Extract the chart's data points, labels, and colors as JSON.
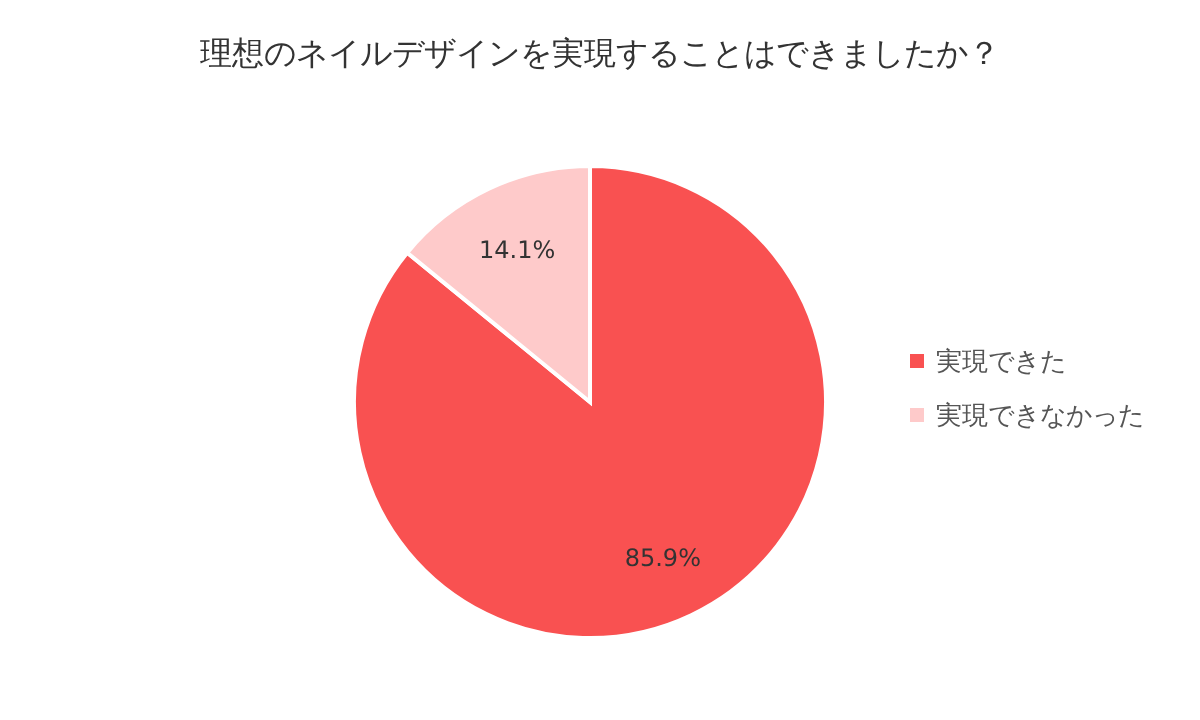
{
  "chart_data": {
    "type": "pie",
    "title": "理想のネイルデザインを実現することはできましたか？",
    "categories": [
      "実現できた",
      "実現できなかった"
    ],
    "values": [
      85.9,
      14.1
    ],
    "value_labels": [
      "85.9%",
      "14.1%"
    ],
    "colors": [
      "#f95151",
      "#fecaca"
    ],
    "legend": "right"
  }
}
